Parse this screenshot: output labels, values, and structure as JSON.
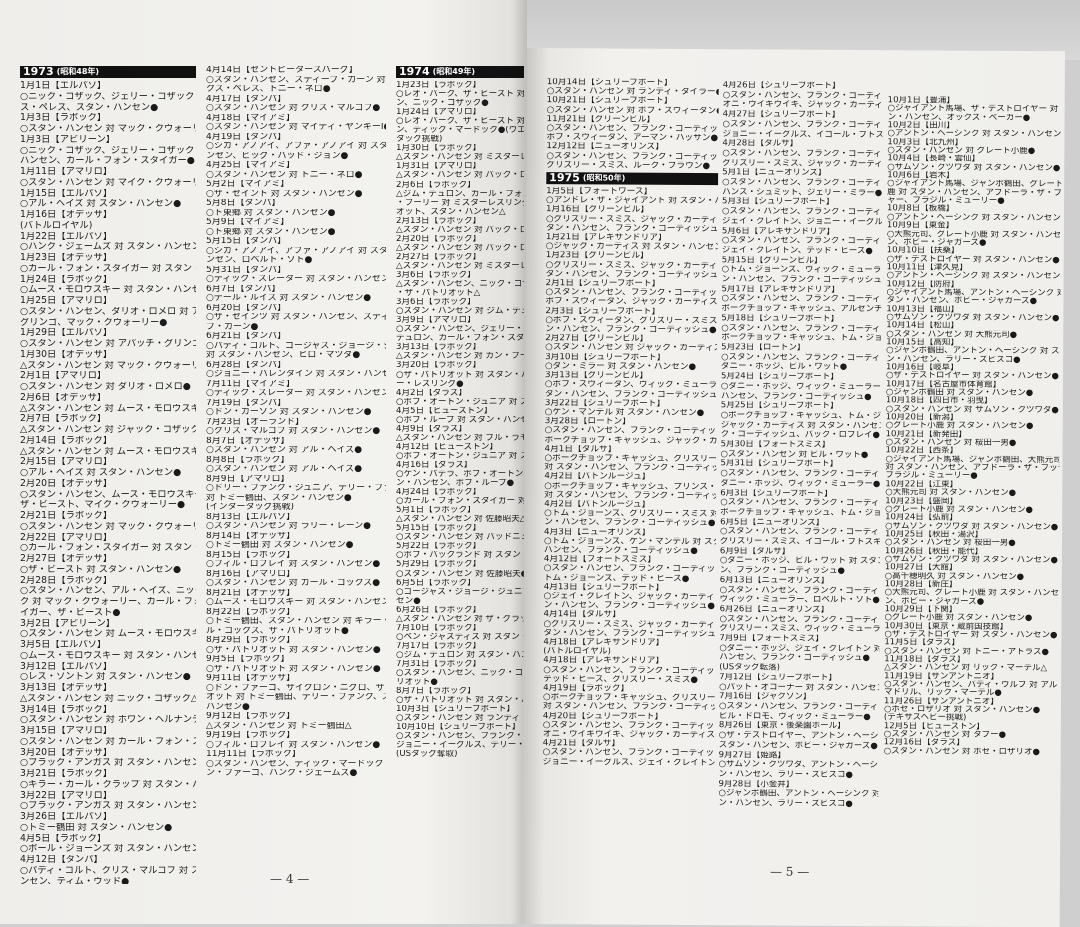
{
  "pages": [
    {
      "page_number": "— 4 —",
      "columns": [
        [
          {
            "h": "1973",
            "e": "(昭和48年)"
          },
          "1月1日【エルパソ】",
          "○ニック・コザック、ジェリー・コザック 対 アレック",
          "ス・ペレス、スタン・ハンセン●",
          "1月3日【ラボック】",
          "○スタン・ハンセン 対 マック・クウォーリー●",
          "1月3日【アビリーン】",
          "○ニック・コザック、ジェリー・コザック 対 スタン・",
          "ハンセン、カール・フォン・スタイガー●",
          "1月11日【アマリロ】",
          "○スタン・ハンセン 対 マイク・クウォーリー●",
          "1月15日【エルパソ】",
          "○アル・ヘイズ 対 スタン・ハンセン●",
          "1月16日【オデッサ】",
          "(バトルロイヤル)",
          "1月22日【エルパソ】",
          "○ハンク・ジェームズ 対 スタン・ハンセン●",
          "1月23日【オデッサ】",
          "○カール・フォン・スタイガー 対 スタン・ハンセン●",
          "1月24日【ラボック】",
          "○ムース・モロウスキー 対 スタン・ハンセン●",
          "1月25日【アマリロ】",
          "○スタン・ハンセン、ダリオ・ロメロ 対 アパッチ・",
          "グリンゴ、マック・クウォーリー●",
          "1月29日【エルパソ】",
          "○スタン・ハンセン 対 アパッチ・グリンゴ●",
          "1月30日【オデッサ】",
          "△スタン・ハンセン 対 マック・クウォーリー△",
          "2月1日【アマリロ】",
          "○スタン・ハンセン 対 ダリオ・ロメロ●",
          "2月6日【オデッサ】",
          "△スタン・ハンセン 対 ムース・モロウスキー△",
          "2月7日【ラボック】",
          "△スタン・ハンセン 対 ジャック・コザック△",
          "2月14日【ラボック】",
          "△スタン・ハンセン 対 ムース・モロウスキー△",
          "2月15日【アマリロ】",
          "○アル・ヘイズ 対 スタン・ハンセン●",
          "2月20日【オデッサ】",
          "○スタン・ハンセン、ムース・モロウスキー 対",
          "ザ・ビースト、マイク・クウォーリー●",
          "2月21日【ラボック】",
          "○スタン・ハンセン 対 マック・クウォーリー●",
          "2月22日【アマリロ】",
          "○カール・フォン・スタイガー 対 スタン・ハンセン●",
          "2月27日【オデッサ】",
          "○ザ・ビースト 対 スタン・ハンセン●",
          "2月28日【ラボック】",
          "○スタン・ハンセン、アル・ヘイズ、ニック・コザッ",
          "ク 対 マック・クウォーリー、カール・フォン・スタ",
          "イガー、ザ・ビースト●",
          "3月2日【アビリーン】",
          "○スタン・ハンセン 対 ムース・モロウスキー●",
          "3月5日【エルパソ】",
          "○ムース・モロウスキー 対 スタン・ハンセン●",
          "3月12日【エルパソ】",
          "○レス・ソントン 対 スタン・ハンセン●",
          "3月13日【オデッサ】",
          "△スタン・ハンセン 対 ニック・コザック△",
          "3月14日【ラボック】",
          "○スタン・ハンセン 対 ホワン・ヘルナンデス●",
          "3月15日【アマリロ】",
          "○スタン・ハンセン 対 カール・フォン・スタイガー△",
          "3月20日【オデッサ】",
          "○ブラック・アンガス 対 スタン・ハンセン●",
          "3月21日【ラボック】",
          "○キラー・カール・クラップ 対 スタン・ハンセン●",
          "3月22日【アマリロ】",
          "○ブラック・アンガス 対 スタン・ハンセン●",
          "3月26日【エルパソ】",
          "○トミー鶴田 対 スタン・ハンセン●",
          "4月5日【ラボック】",
          "○ボール・ジョーンズ 対 スタン・ハンセン●",
          "4月12日【タンパ】",
          "○パディ・コルト、クリス・マルコフ 対 スタン・ハ",
          "ンセン、ティム・ウッド●"
        ],
        [
          "4月14日【セントピータースバーグ】",
          "○スタン・ハンセン、スティーブ・カーン 対 アレッ",
          "クス・ペレス、トニー・ネロ●",
          "4月17日【タンパ】",
          "○スタン・ハンセン 対 クリス・マルコフ●",
          "4月18日【マイアミ】",
          "○スタン・ハンセン 対 マイティ・ヤンキーI●",
          "4月19日【タンパ】",
          "○シカ・アノアイ、アファ・アノアイ 対 スタン・ハ",
          "ンセン、ビッグ・バッド・ジョン●",
          "4月25日【マイアミ】",
          "○スタン・ハンセン 対 トニー・ネロ●",
          "5月2日【マイアミ】",
          "○ザ・セイント 対 スタン・ハンセン●",
          "5月8日【タンパ】",
          "○ト東郷 対 スタン・ハンセン●",
          "5月9日【マイアミ】",
          "○ト東郷 対 スタン・ハンセン●",
          "5月15日【タンパ】",
          "○シカ・アノアイ、アファ・アノアイ 対 スタン・ハ",
          "ンセン、ロベルト・ソト●",
          "5月31日【タンパ】",
          "○ディック・スレーター 対 スタン・ハンセン●",
          "6月7日【タンパ】",
          "○デール・ルイス 対 スタン・ハンセン●",
          "6月20日【タンパ】",
          "○ザ・セインツ 対 スタン・ハンセン、スティー",
          "ブ・カーン●",
          "6月21日【タンパ】",
          "○パディ・コルト、ゴージャス・ジョージ・ジュニア",
          "対 スタン・ハンセン、ヒロ・マツダ●",
          "6月28日【タンパ】",
          "○ジョニー・バレンタイン 対 スタン・ハンセン●",
          "7月11日【マイアミ】",
          "○ディック・スレーター 対 スタン・ハンセン●",
          "7月19日【タンパ】",
          "○ドン・カーソン 対 スタン・ハンセン●",
          "7月23日【オーランド】",
          "○クリス・マルコフ 対 スタン・ハンセン●",
          "8月7日【オデッサ】",
          "○スタン・ハンセン 対 アル・ヘイズ●",
          "8月8日【ラボック】",
          "○スタン・ハンセン 対 アル・ヘイズ●",
          "8月9日【アマリロ】",
          "○ドリー・ファンク・ジュニア、テリー・ファンク",
          "対 トミー鶴田、スタン・ハンセン●",
          "(インタータッグ挑戦)",
          "8月13日【エルパソ】",
          "○スタン・ハンセン 対 ラリー・レーン●",
          "8月14日【オデッサ】",
          "○トミー鶴田 対 スタン・ハンセン●",
          "8月15日【ラボック】",
          "○フィル・ロブレイ 対 スタン・ハンセン●",
          "8月16日【アマリロ】",
          "○スタン・ハンセン 対 カール・コックス●",
          "8月21日【オデッサ】",
          "○ムース・モロウスキー 対 スタン・ハンセン●",
          "8月22日【ラボック】",
          "○トミー鶴田、スタン・ハンセン 対 キラー・カー",
          "ル・コックス、ザ・パトリオット●",
          "8月29日【ラボック】",
          "○ザ・パトリオット 対 スタン・ハンセン●",
          "9月5日【ラボック】",
          "○ザ・パトリオット 対 スタン・ハンセン●",
          "9月11日【オデッサ】",
          "○ドン・ファーゴ、サイクロン・ニグロ、ザ・パトリ",
          "オット 対 トミー鶴田、テリー・ファンク、スタン・",
          "ハンセン●",
          "9月12日【ラボック】",
          "△スタン・ハンセン 対 トミー鶴田△",
          "9月19日【ラボック】",
          "○フィル・ロブレイ 対 スタン・ハンセン●",
          "11月11日【ラボック】",
          "○スタン・ハンセン、ディック・マードック 対 ド",
          "ン・ファーゴ、ハンク・ジェームズ●"
        ],
        [
          {
            "h": "1974",
            "e": "(昭和49年)"
          },
          "1月23日【ラボック】",
          "○レオ・バーク、ザ・ビースト 対 スタン・ハンセ",
          "ン、ニック・コザック●",
          "1月24日【アマリロ】",
          "○レオ・バーク、ザ・ビースト 対 スタン・ハンセ",
          "ン、ディック・マードック●(ウエスタンステーツ",
          "タッグ挑戦)",
          "1月30日【ラボック】",
          "△スタン・ハンセン 対 ミスターレスリング△",
          "1月31日【アマリロ】",
          "△スタン・ハンセン 対 バック・ロブレイ△",
          "2月6日【ラボック】",
          "△ジム・デュロン、カール・フォン・スタイガー、ザ",
          "・フーリー 対 ミスターレスリング、ザ・パトリ",
          "オット、スタン・ハンセン△",
          "2月13日【ラボック】",
          "△スタン・ハンセン 対 バック・ロブレイ△",
          "2月20日【ラボック】",
          "△スタン・ハンセン 対 バック・ロブレイ△",
          "2月27日【ラボック】",
          "△スタン・ハンセン 対 ミスターレスリング△",
          "3月6日【ラボック】",
          "△スタン・ハンセン、ニック・コザック 対 ミスター",
          "・ザ・パトリオット△",
          "3月6日【ラボック】",
          "○スタン・ハンセン 対 ジム・デュロン●",
          "3月9日【アマリロ】",
          "○スタン・ハンセン、ジェリー・コザック 対 ジム・",
          "デュロン、カール・フォン・スタイガー●",
          "3月13日【ラボック】",
          "△スタン・ハンセン 対 カン・フーリー△",
          "3月20日【ラボック】",
          "○ザ・パトリオット 対 スタン・ハンセン、ミスタ",
          "ー・レスリング●",
          "4月2日【ダラス】",
          "○ボブ・オートン・ジュニア 対 スタン・ハンセン●",
          "4月5日【ヒューストン】",
          "○ボブ・ループ 対 スタン・ハンセン●",
          "4月9日【ダラス】",
          "△スタン・ハンセン 対 ブル・ラモス△",
          "4月12日【ヒューストン】",
          "○ボブ・オートン・ジュニア 対 スタン・ハンセン●",
          "4月16日【ダラス】",
          "○ケン・パテラ、ボブ・オートン・ジュニア 対 スタ",
          "ン・ハンセン、ボブ・ループ●",
          "4月24日【ラボック】",
          "○カール・フォン・スタイガー 対 スタン・ハンセン●",
          "5月1日【ラボック】",
          "△スタン・ハンセン 対 佐藤昭夫△",
          "5月15日【ラボック】",
          "○スタン・ハンセン 対 バッドニュース・アレン●",
          "5月22日【ラボック】",
          "○ボブ・バックランド 対 スタン・ハンセン●",
          "5月29日【ラボック】",
          "○スタン・ハンセン 対 佐藤昭夫●",
          "6月5日【ラボック】",
          "○ゴージャス・ジョージ・ジュニア 対 スタン・ハン",
          "セン●",
          "6月26日【ラボック】",
          "△スタン・ハンセン 対 ザ・グラップラー△",
          "7月10日【ラボック】",
          "○ベン・ジャスティス 対 スタン・ハンセン●",
          "7月17日【ラボック】",
          "○ジム・デュロン 対 スタン・ハンセン●",
          "7月31日【ラボック】",
          "○スタン・ハンセン、ニック・コザック 対 ザ・パト",
          "リオット●",
          "8月7日【ラボック】",
          "○ザ・パトリオット 対 スタン・ハンセン●",
          "10月3日【シュリーブポート】",
          "○スタン・ハンセン 対 ランディ・タイラー●",
          "10月10日【シュリーブポート】",
          "○スタン・ハンセン、フランク・ゴーディッシュ 対",
          "ジョニー・イーグルス、テリー・レイサム●",
          "(USタッグ奪取)"
        ]
      ]
    },
    {
      "page_number": "— 5 —",
      "columns": [
        [
          "10月14日【シュリーブポート】",
          "○スタン・ハンセン 対 ランディ・タイラー●",
          "10月21日【シュリーブポート】",
          "○スタン・ハンセン 対 ボブ・スウィータン●",
          "11月21日【グリーンビル】",
          "○スタン・ハンセン、フランク・ゴーディッシュ 対",
          "ボブ・スウィータン、アーマン・ハッサン●",
          "12月12日【ニューオリンズ】",
          "○スタン・ハンセン、フランク・ゴーディッシュ 対",
          "グリズリー・スミス、ルーク・ブラウン●",
          {
            "h": "1975",
            "e": "(昭和50年)"
          },
          "1月5日【フォートワース】",
          "○アンドレ・ザ・ジャイアント 対 スタン・ハンセン●",
          "1月16日【グリーンビル】",
          "○グリズリー・スミス、ジャック・カーティス 対 ス",
          "タン・ハンセン、フランク・ゴーディッシュ●",
          "1月21日【アレキサンドリア】",
          "○ジャック・カーティス 対 スタン・ハンセン●",
          "1月23日【グリーンビル】",
          "○グリズリー・スミス、ジャック・カーティス 対 ス",
          "タン・ハンセン、フランク・ゴーディッシュ●",
          "2月1日【シュリーブポート】",
          "○スタン・ハンセン、フランク・ゴーディッシュ 対",
          "ボブ・スウィータン、ジャック・カーティス●",
          "2月3日【シュリーブポート】",
          "○ボブ・スウィータン、グリズリー・スミス 対 スタ",
          "ン・ハンセン、フランク・ゴーディッシュ●",
          "2月27日【グリーンビル】",
          "○スタン・ハンセン 対 ジャック・カーティス●",
          "3月10日【シュリーブポート】",
          "○ダン・ミラー 対 スタン・ハンセン●",
          "3月13日【グリーンビル】",
          "○ボブ・スウィータン、ヴィック・ミューラー 対 ス",
          "タン・ハンセン、フランク・ゴーディッシュ●",
          "3月22日【シュリーブポート】",
          "○ケン・マンテル 対 スタン・ハンセン●",
          "3月28日【ロートン】",
          "○スタン・ハンセン、フランク・ゴーディッシュ 対",
          "ポークチョップ・キャッシュ、ジャック・カーティス●",
          "4月1日【タルサ】",
          "○ポークチョップ・キャッシュ、グリズリー・スミス",
          "対 スタン・ハンセン、フランク・ゴーディッシュ●",
          "4月2日【バトンルージュ】",
          "○ポークチョップ・キャッシュ、プリンス・タブー",
          "対 スタン・ハンセン、フランク・ゴーディッシュ●",
          "4月2日【バトンルージュ】",
          "○トム・ジョーンズ、グリズリー・スミス 対 スタ",
          "ン・ハンセン、フランク・ゴーディッシュ●",
          "4月3日【ニューオリンズ】",
          "○トム・ジョーンズ、ケン・マンテル 対 スタン・",
          "ハンセン、フランク・ゴーディッシュ●",
          "4月12日【フォートスミス】",
          "○スタン・ハンセン、フランク・ゴーディッシュ 対",
          "トム・ジョーンズ、テッド・ヒース●",
          "4月13日【シュリーブポート】",
          "○ジェイ・クレイトン、ジャック・カーティス 対 スタ",
          "ン・ハンセン、フランク・ゴーディッシュ●",
          "4月14日【タルサ】",
          "○グリズリー・スミス、ジャック・カーティス 対 ス",
          "タン・ハンセン、フランク・ゴーディッシュ●",
          "4月18日【アレキサンドリア】",
          "(バトルロイヤル)",
          "4月18日【アレキサンドリア】",
          "○スタン・ハンセン、フランク・ゴーディッシュ 対",
          "テッド・ヒース、グリズリー・スミス●",
          "4月19日【ラボック】",
          "○ポークチョップ・キャッシュ、グリズリー・スミス",
          "対 スタン・ハンセン、フランク・ゴーディッシュ●",
          "4月20日【シュリーブポート】",
          "○スタン・ハンセン、フランク・ゴーディッシュ 対",
          "オニ・ウイキウイキ、ジャック・カーティス●",
          "4月21日【タルサ】",
          "○スタン・ハンセン、フランク・ゴーディッシュ 対",
          "ジョニー・イーグルス、ジェイ・クレイトン●"
        ],
        [
          "4月26日【シュリーブポート】",
          "○スタン・ハンセン、フランク・ゴーディッシュ 対",
          "オニ・ウイキウイキ、ジャック・カーティス●",
          "4月27日【シュリーブポート】",
          "○スタン・ハンセン、フランク・ゴーディッシュ 対",
          "ジョニー・イーグルス、イゴール・ブトスキー●",
          "4月28日【タルサ】",
          "○スタン・ハンセン、フランク・ゴーディッシュ 対",
          "グリズリー・スミス、ジャック・カーティス●",
          "5月1日【ニューオリンズ】",
          "○スタン・ハンセン、フランク・ゴーディッシュ 対",
          "ハンス・シュミット、ジェリー・ミラー●",
          "5月3日【シュリーブポート】",
          "○スタン・ハンセン、フランク・ゴーディッシュ 対",
          "ジェイ・クレイトン、ジョニー・イーグルス●",
          "5月6日【アレキサンドリア】",
          "○スタン・ハンセン、フランク・ゴーディッシュ 対",
          "ジェイ・クレイトン、テッド・ヒース●",
          "5月15日【グリーンビル】",
          "○トム・ジョーンズ、ヴィック・ミューラー 対 スタ",
          "ン・ハンセン、フランク・ゴーディッシュ●",
          "5月17日【アレキサンドリア】",
          "○スタン・ハンセン、フランク・ゴーディッシュ 対",
          "ポークチョップ・キャッシュ、アルゼンチン・アポロ●",
          "5月18日【シュリーブポート】",
          "○スタン・ハンセン、フランク・ゴーディッシュ 対",
          "ポークチョップ・キャッシュ、トム・ジョーンズ●",
          "5月23日【ロートン】",
          "○スタン・ハンセン、フランク・ゴーディッシュ 対",
          "ダニー・ホッジ、ビル・ワット●",
          "5月24日【シュリーブポート】",
          "○ダニー・ホッジ、ヴィック・ミューラー 対 スタン・",
          "ハンセン、フランク・ゴーディッシュ●",
          "5月25日【シュリーブポート】",
          "○ポークチョップ・キャッシュ、トム・ジョーンズ、",
          "ジャック・カーティス 対 スタン・ハンセン、フラン",
          "ク・ゴーディッシュ、バック・ロブレイ●",
          "5月30日【フォートスミス】",
          "○スタン・ハンセン 対 ビル・ワット●",
          "5月31日【シュリーブポート】",
          "○スタン・ハンセン、フランク・ゴーディッシュ 対",
          "ダニー・ホッジ、ヴィック・ミューラー●",
          "6月3日【シュリーブポート】",
          "○スタン・ハンセン、フランク・ゴーディッシュ 対",
          "ポークチョップ・キャッシュ、トム・ジョーンズ●",
          "6月5日【ニューオリンズ】",
          "○スタン・ハンセン、フランク・ゴーディッシュ 対",
          "グリズリー・スミス、イゴール・ブトスキー●",
          "6月9日【タルサ】",
          "○ダニー・ホッジ、ビル・ワット 対 スタン・ハンセ",
          "ン、フランク・ゴーディッシュ●",
          "6月13日【ニューオリンズ】",
          "○スタン・ハンセン、フランク・ゴーディッシュ 対",
          "ヴィック・ミューラー、ロベルト・ソト●",
          "6月26日【ニューオリンズ】",
          "○スタン・ハンセン、フランク・ゴーディッシュ 対",
          "グリズリー・スミス、ヴィック・ミューラー●",
          "7月9日【フォートスミス】",
          "○ダニー・ホッジ、ジェイ・クレイトン 対 スタン・",
          "ハンセン、フランク・ゴーディッシュ●",
          "(USタッグ転落)",
          "7月12日【シュリーブポート】",
          "○パット・オコーナー 対 スタン・ハンセン●",
          "7月16日【ジャクソン】",
          "○スタン・ハンセン、フランク・ゴーディッシュ 対",
          "ビル・ドロモ、ヴィック・ミューラー●",
          "8月26日【東京・後楽園ホール】",
          "○ザ・デストロイヤー、アントン・ヘーシンク 対",
          "スタン・ハンセン、ボビー・ジャガーズ●",
          "9月27日【姫路】",
          "○サムソン・クツワダ、アントン・ヘーシンク 対 スタ",
          "ン・ハンセン、ラリー・ズビスコ●",
          "9月28日【小金井】",
          "○ジャンボ鶴田、アントン・ヘーシンク 対 スタ",
          "ン・ハンセン、ラリー・ズビスコ●"
        ],
        [
          "10月1日【豊浦】",
          "○ジャイアント馬場、ザ・デストロイヤー 対 スタ",
          "ン・ハンセン、オックス・ベーカー●",
          "10月2日【田川】",
          "○アントン・ヘーシンク 対 スタン・ハンセン●",
          "10月3日【北九州】",
          "○スタン・ハンセン 対 グレート小鹿●",
          "10月4日【長崎・雲仙】",
          "○サムソン・クツワダ 対 スタン・ハンセン●",
          "10月6日【岩木】",
          "○ジャイアント馬場、ジャンボ鶴田、グレート小",
          "鹿 対 スタン・ハンセン、アブドーラ・ザ・ブッチ",
          "ャー、ブラジル・ミューリー●",
          "10月8日【板橋】",
          "○アントン・ヘーシンク 対 スタン・ハンセン●",
          "10月9日【東金】",
          "○大熊元司、グレート小鹿 対 スタン・ハンセ",
          "ン、ボビー・ジャガーズ●",
          "10月10日【扶桑】",
          "○ザ・デストロイヤー 対 スタン・ハンセン●",
          "10月11日【津久見】",
          "○アントン・ヘーシンク 対 スタン・ハンセン●",
          "10月12日【防府】",
          "○ジャイアント馬場、アントン・ヘーシンク 対 ス",
          "タン・ハンセン、ボビー・ジャガーズ●",
          "10月13日【福山】",
          "○サムソン・クツワダ 対 スタン・ハンセン●",
          "10月14日【松山】",
          "○スタン・ハンセン 対 大熊元司●",
          "10月15日【高知】",
          "○ジャンボ鶴田、アントン・ヘーシンク 対 スタ",
          "ン・ハンセン、ラリー・ズビスコ●",
          "10月16日【岐阜】",
          "○ザ・デストロイヤー 対 スタン・ハンセン●",
          "10月17日【名古屋市体育館】",
          "○ジャンボ鶴田 対 スタン・ハンセン●",
          "10月18日【四日市・羽曳】",
          "○スタン・ハンセン 対 サムソン・クツワダ●",
          "10月20日【新潟】",
          "○グレート小鹿 対 スタン・ハンセン●",
          "10月21日【新発田】",
          "○スタン・ハンセン 対 桜田一男●",
          "10月22日【西条】",
          "○ジャイアント馬場、ジャンボ鶴田、大熊元司",
          "対 スタン・ハンセン、アブドーラ・ザ・ブッチャー、",
          "ブラジル・ミューリー●",
          "10月22日【江東】",
          "○大熊元司 対 スタン・ハンセン●",
          "10月23日【盛岡】",
          "○グレート小鹿 対 スタン・ハンセン●",
          "10月24日【弘前】",
          "○サムソン・クツワダ 対 スタン・ハンセン●",
          "10月25日【秋田・湯沢】",
          "○スタン・ハンセン 対 桜田一男●",
          "10月26日【秋田・能代】",
          "○サムソン・クツワダ 対 スタン・ハンセン●",
          "10月27日【大館】",
          "○高千穂明久 対 スタン・ハンセン●",
          "10月28日【新庄】",
          "○大熊元司、グレート小鹿 対 スタン・ハンセ",
          "ン、ボビー・ジャガーズ●",
          "10月29日【下関】",
          "○グレート小鹿 対 スタン・ハンセン●",
          "10月30日【東京・蔵前国技館】",
          "○ザ・デストロイヤー 対 スタン・ハンセン●",
          "11月5日【ダラス】",
          "○スタン・ハンセン 対 トニー・アトラス●",
          "11月18日【ダラス】",
          "△スタン・ハンセン 対 リック・マーテル△",
          "11月19日【サンアントニオ】",
          "○スタン・ハンセン、バディ・ウルフ 対 アル・",
          "マドリル、リック・マーテル●",
          "11月26日【サンアントニオ】",
          "○ホセ・ロザリオ 対 スタン・ハンセン●",
          "(テキサスヘビー挑戦)",
          "12月5日【ヒューストン】",
          "○スタン・ハンセン 対 タブー●",
          "12月16日【ダラス】",
          "○スタン・ハンセン 対 ホセ・ロザリオ●"
        ]
      ]
    }
  ]
}
